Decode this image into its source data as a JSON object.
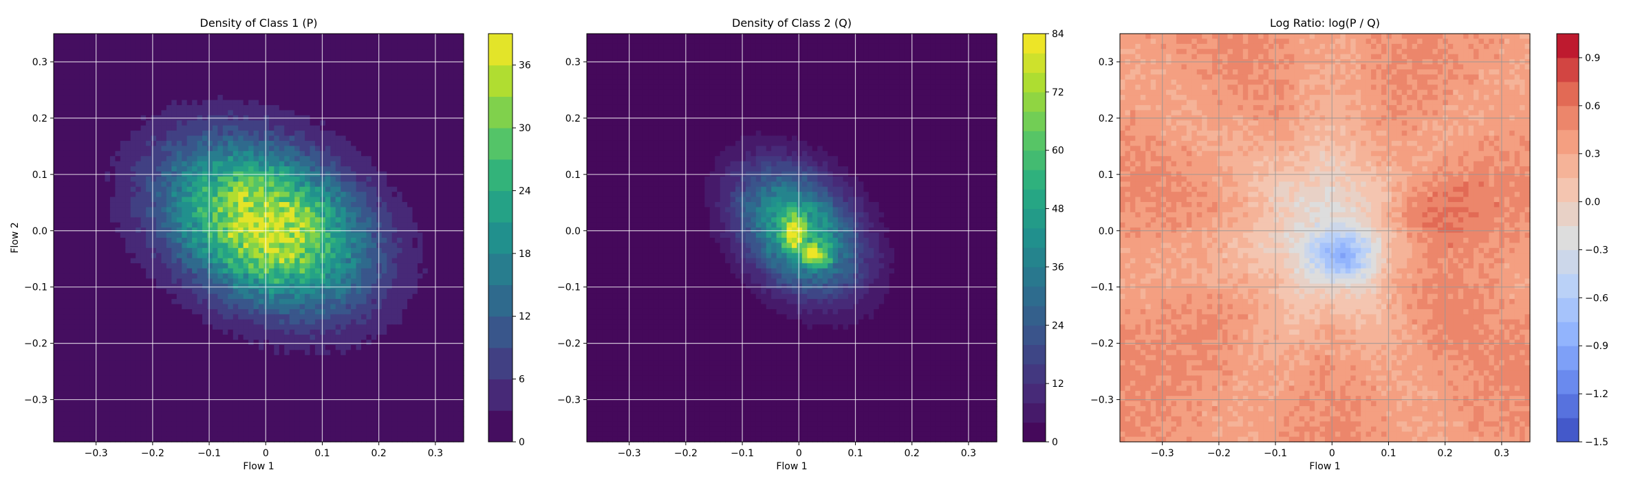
{
  "chart_data": [
    {
      "type": "heatmap",
      "title": "Density of Class 1 (P)",
      "xlabel": "Flow 1",
      "ylabel": "Flow 2",
      "xlim": [
        -0.375,
        0.35
      ],
      "ylim": [
        -0.375,
        0.35
      ],
      "xticks": [
        -0.3,
        -0.2,
        -0.1,
        0.0,
        0.1,
        0.2,
        0.3
      ],
      "yticks": [
        -0.3,
        -0.2,
        -0.1,
        0.0,
        0.1,
        0.2,
        0.3
      ],
      "xtick_labels": [
        "−0.3",
        "−0.2",
        "−0.1",
        "0",
        "0.1",
        "0.2",
        "0.3"
      ],
      "ytick_labels": [
        "−0.3",
        "−0.2",
        "−0.1",
        "0.0",
        "0.1",
        "0.2",
        "0.3"
      ],
      "grid": true,
      "colormap": "viridis",
      "colorbar": {
        "range": [
          0,
          39
        ],
        "ticks": [
          0,
          6,
          12,
          18,
          24,
          30,
          36
        ],
        "tick_labels": [
          "0",
          "6",
          "12",
          "18",
          "24",
          "30",
          "36"
        ],
        "levels": 13
      },
      "blobs": [
        {
          "cx": 0.0,
          "cy": 0.01,
          "sx": 0.13,
          "sy": 0.09,
          "angle_deg": -28,
          "peak": 38
        }
      ]
    },
    {
      "type": "heatmap",
      "title": "Density of Class 2 (Q)",
      "xlabel": "Flow 1",
      "ylabel": "",
      "xlim": [
        -0.375,
        0.35
      ],
      "ylim": [
        -0.375,
        0.35
      ],
      "xticks": [
        -0.3,
        -0.2,
        -0.1,
        0.0,
        0.1,
        0.2,
        0.3
      ],
      "yticks": [
        -0.3,
        -0.2,
        -0.1,
        0.0,
        0.1,
        0.2,
        0.3
      ],
      "xtick_labels": [
        "−0.3",
        "−0.2",
        "−0.1",
        "0",
        "0.1",
        "0.2",
        "0.3"
      ],
      "ytick_labels": [
        "−0.3",
        "−0.2",
        "−0.1",
        "0.0",
        "0.1",
        "0.2",
        "0.3"
      ],
      "grid": true,
      "colormap": "viridis",
      "colorbar": {
        "range": [
          0,
          84
        ],
        "ticks": [
          0,
          12,
          24,
          36,
          48,
          60,
          72,
          84
        ],
        "tick_labels": [
          "0",
          "12",
          "24",
          "36",
          "48",
          "60",
          "72",
          "84"
        ],
        "levels": 21
      },
      "blobs": [
        {
          "cx": 0.0,
          "cy": 0.0,
          "sx": 0.085,
          "sy": 0.06,
          "angle_deg": -48,
          "peak": 55
        },
        {
          "cx": 0.03,
          "cy": -0.045,
          "sx": 0.018,
          "sy": 0.012,
          "angle_deg": 0,
          "peak": 75
        },
        {
          "cx": -0.01,
          "cy": -0.005,
          "sx": 0.012,
          "sy": 0.02,
          "angle_deg": 0,
          "peak": 65
        }
      ]
    },
    {
      "type": "heatmap",
      "title": "Log Ratio: log(P / Q)",
      "xlabel": "Flow 1",
      "ylabel": "",
      "xlim": [
        -0.375,
        0.35
      ],
      "ylim": [
        -0.375,
        0.35
      ],
      "xticks": [
        -0.3,
        -0.2,
        -0.1,
        0.0,
        0.1,
        0.2,
        0.3
      ],
      "yticks": [
        -0.3,
        -0.2,
        -0.1,
        0.0,
        0.1,
        0.2,
        0.3
      ],
      "xtick_labels": [
        "−0.3",
        "−0.2",
        "−0.1",
        "0",
        "0.1",
        "0.2",
        "0.3"
      ],
      "ytick_labels": [
        "−0.3",
        "−0.2",
        "−0.1",
        "0.0",
        "0.1",
        "0.2",
        "0.3"
      ],
      "grid": true,
      "colormap": "coolwarm",
      "colorbar": {
        "range": [
          -1.5,
          1.05
        ],
        "ticks": [
          -1.5,
          -1.2,
          -0.9,
          -0.6,
          -0.3,
          0.0,
          0.3,
          0.6,
          0.9
        ],
        "tick_labels": [
          "−1.5",
          "−1.2",
          "−0.9",
          "−0.6",
          "−0.3",
          "0.0",
          "0.3",
          "0.6",
          "0.9"
        ],
        "levels": 17
      },
      "background_value": 0.42,
      "features": [
        {
          "cx": 0.0,
          "cy": 0.0,
          "sx": 0.11,
          "sy": 0.12,
          "angle_deg": 0,
          "amp": -0.62
        },
        {
          "cx": 0.02,
          "cy": -0.045,
          "sx": 0.04,
          "sy": 0.03,
          "angle_deg": 0,
          "amp": -0.75
        },
        {
          "cx": 0.17,
          "cy": 0.0,
          "sx": 0.07,
          "sy": 0.09,
          "angle_deg": 20,
          "amp": 0.3
        }
      ]
    }
  ]
}
